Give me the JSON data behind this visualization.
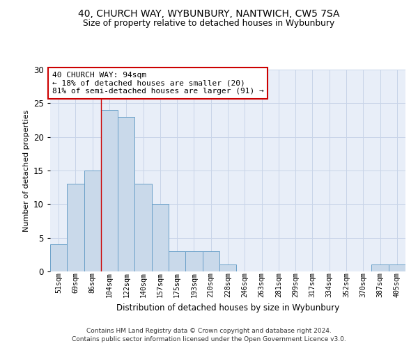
{
  "title1": "40, CHURCH WAY, WYBUNBURY, NANTWICH, CW5 7SA",
  "title2": "Size of property relative to detached houses in Wybunbury",
  "xlabel": "Distribution of detached houses by size in Wybunbury",
  "ylabel": "Number of detached properties",
  "bins": [
    "51sqm",
    "69sqm",
    "86sqm",
    "104sqm",
    "122sqm",
    "140sqm",
    "157sqm",
    "175sqm",
    "193sqm",
    "210sqm",
    "228sqm",
    "246sqm",
    "263sqm",
    "281sqm",
    "299sqm",
    "317sqm",
    "334sqm",
    "352sqm",
    "370sqm",
    "387sqm",
    "405sqm"
  ],
  "values": [
    4,
    13,
    15,
    24,
    23,
    13,
    10,
    3,
    3,
    3,
    1,
    0,
    0,
    0,
    0,
    0,
    0,
    0,
    0,
    1,
    1
  ],
  "bar_color": "#c9d9ea",
  "bar_edge_color": "#6aa0c8",
  "vline_x": 2.5,
  "vline_color": "#cc0000",
  "annotation_text": "40 CHURCH WAY: 94sqm\n← 18% of detached houses are smaller (20)\n81% of semi-detached houses are larger (91) →",
  "annotation_box_color": "#ffffff",
  "annotation_box_edge": "#cc0000",
  "ylim": [
    0,
    30
  ],
  "yticks": [
    0,
    5,
    10,
    15,
    20,
    25,
    30
  ],
  "grid_color": "#c8d4e8",
  "bg_color": "#e8eef8",
  "footer1": "Contains HM Land Registry data © Crown copyright and database right 2024.",
  "footer2": "Contains public sector information licensed under the Open Government Licence v3.0."
}
